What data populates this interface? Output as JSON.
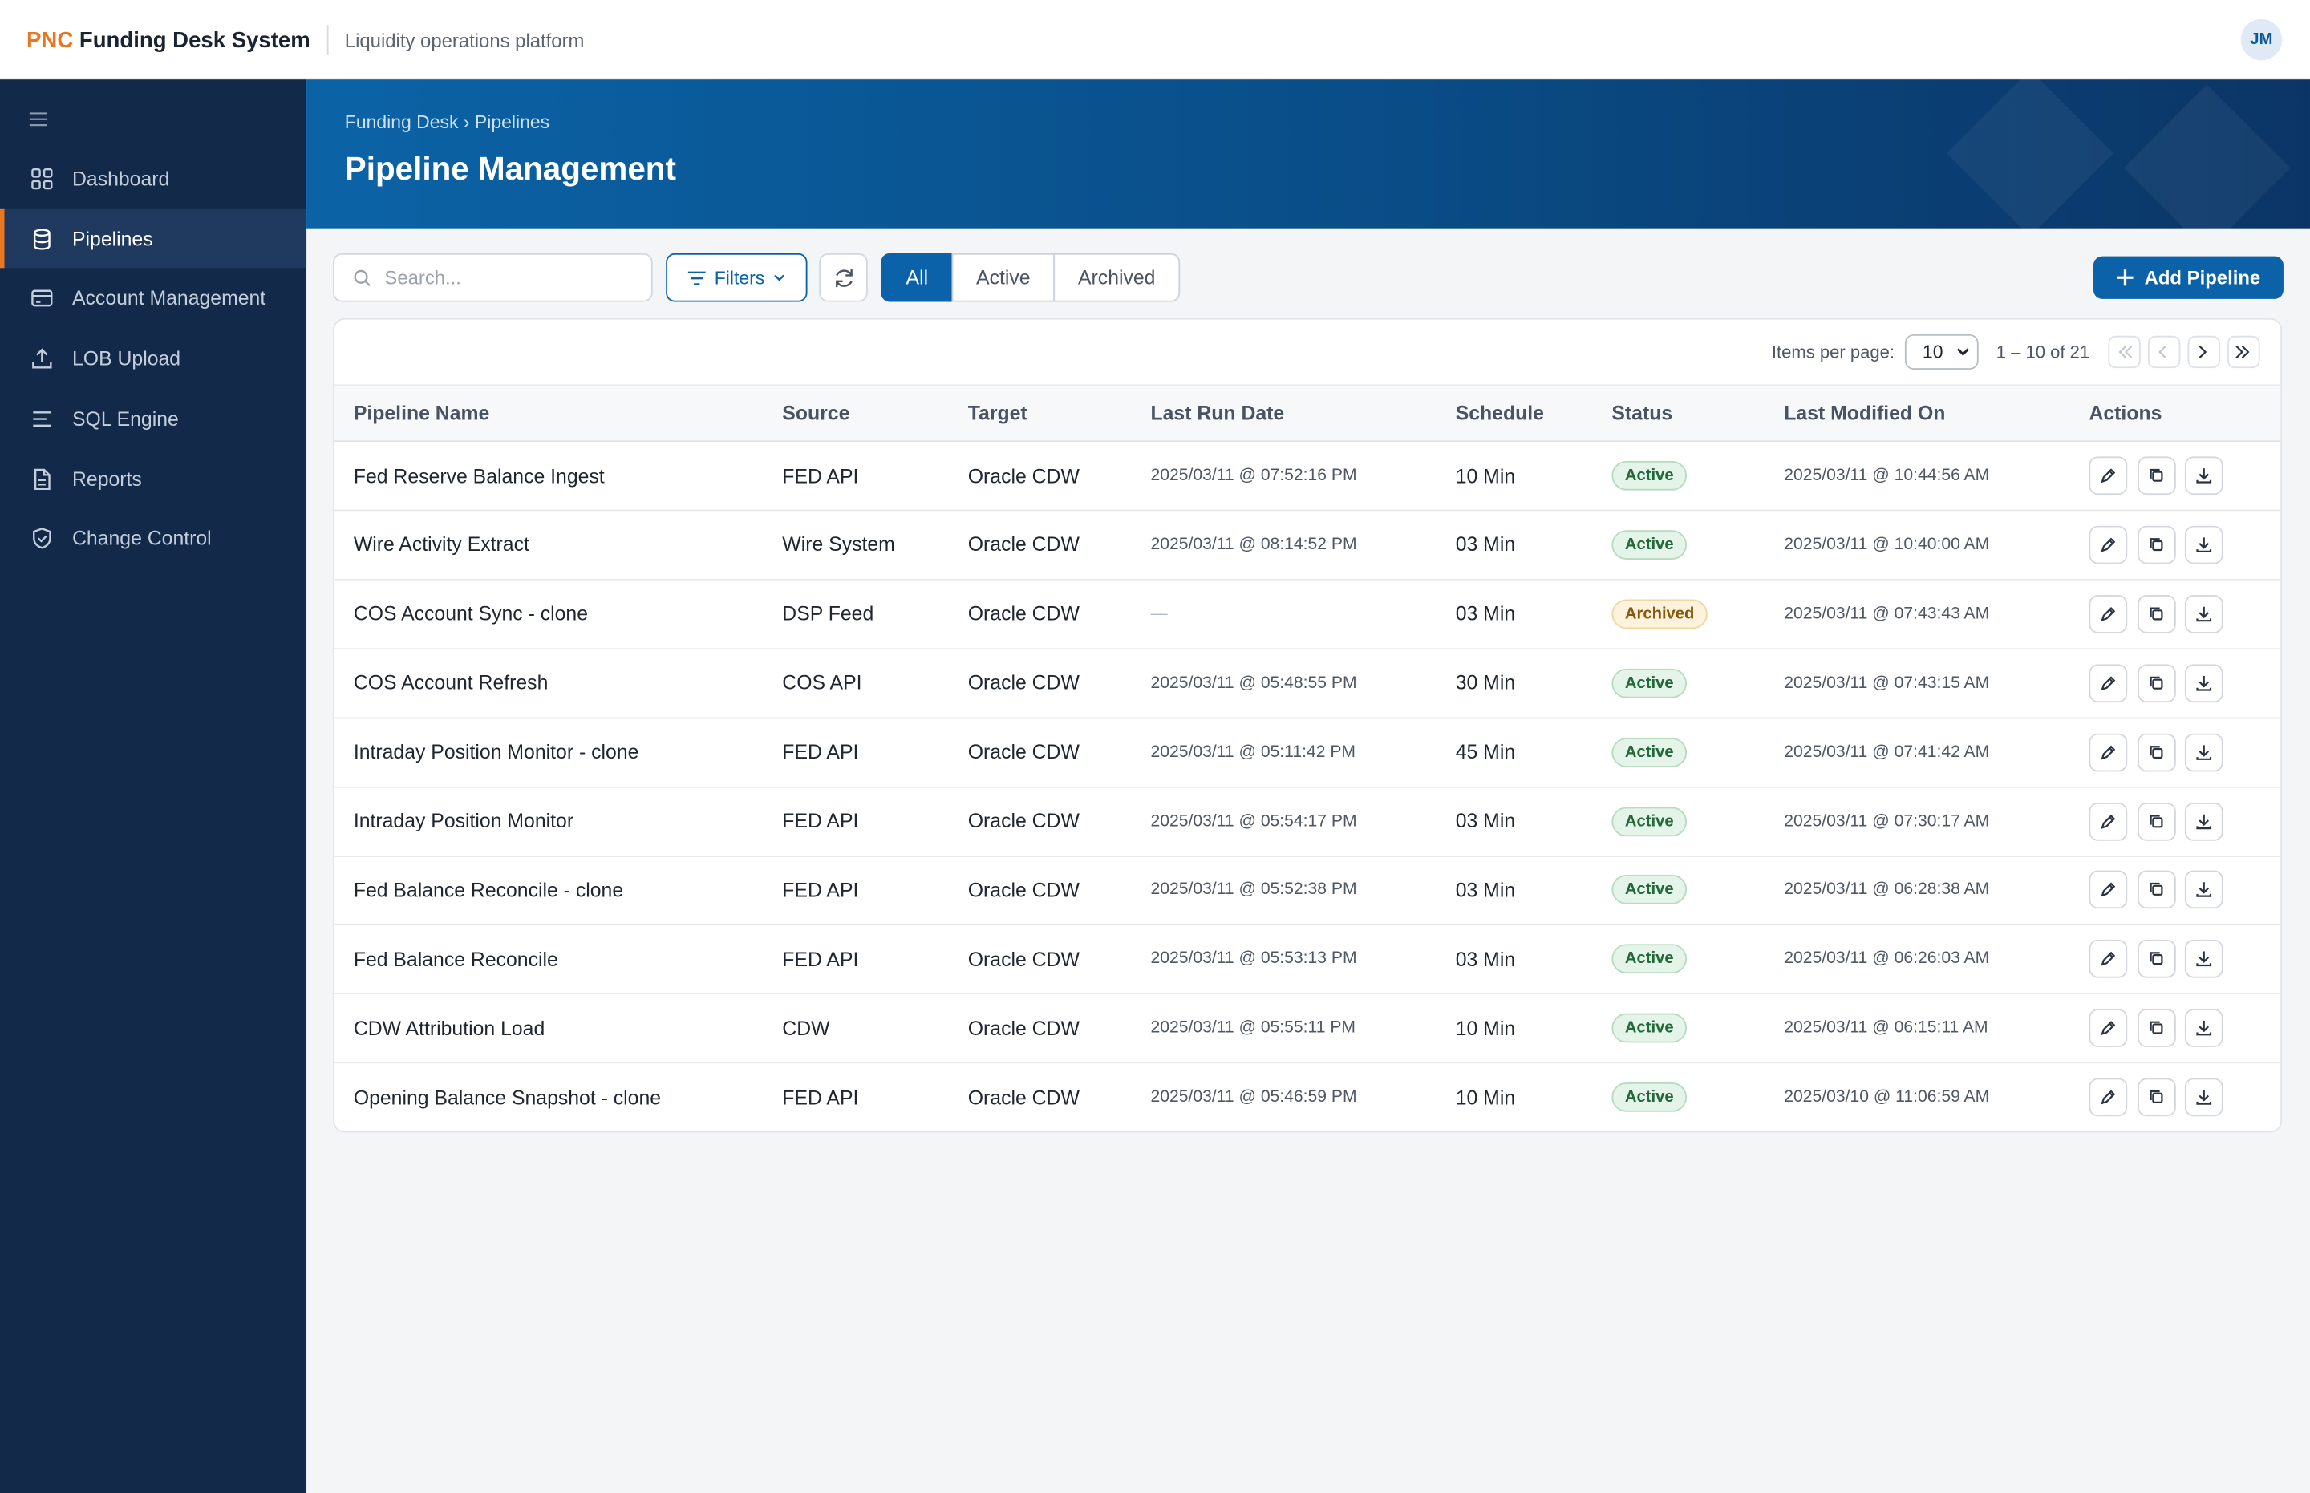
{
  "header": {
    "brand_accent": "PNC",
    "brand": "Funding Desk System",
    "tagline": "Liquidity operations platform",
    "avatar": "JM"
  },
  "sidebar": {
    "items": [
      "Dashboard",
      "Pipelines",
      "Account Management",
      "LOB Upload",
      "SQL Engine",
      "Reports",
      "Change Control"
    ],
    "active": 1
  },
  "page": {
    "breadcrumb": [
      "Funding Desk",
      "Pipelines"
    ],
    "breadcrumb_separator": "›",
    "title": "Pipeline Management"
  },
  "toolbar": {
    "search_placeholder": "Search...",
    "filters": "Filters",
    "tabs": [
      "All",
      "Active",
      "Archived"
    ],
    "active_tab": 0,
    "add_button": "Add Pipeline"
  },
  "pagination": {
    "label": "Items per page:",
    "page_size": "10",
    "range": "1 – 10 of 21"
  },
  "table": {
    "columns": [
      "Pipeline Name",
      "Source",
      "Target",
      "Last Run Date",
      "Schedule",
      "Status",
      "Last Modified On",
      "Actions"
    ],
    "rows": [
      [
        "Fed Reserve Balance Ingest",
        "FED API",
        "Oracle CDW",
        "2025/03/11 @ 07:52:16 PM",
        "10 Min",
        "Active",
        "2025/03/11 @ 10:44:56 AM"
      ],
      [
        "Wire Activity Extract",
        "Wire System",
        "Oracle CDW",
        "2025/03/11 @ 08:14:52 PM",
        "03 Min",
        "Active",
        "2025/03/11 @ 10:40:00 AM"
      ],
      [
        "COS Account Sync - clone",
        "DSP Feed",
        "Oracle CDW",
        "—",
        "03 Min",
        "Archived",
        "2025/03/11 @ 07:43:43 AM"
      ],
      [
        "COS Account Refresh",
        "COS API",
        "Oracle CDW",
        "2025/03/11 @ 05:48:55 PM",
        "30 Min",
        "Active",
        "2025/03/11 @ 07:43:15 AM"
      ],
      [
        "Intraday Position Monitor - clone",
        "FED API",
        "Oracle CDW",
        "2025/03/11 @ 05:11:42 PM",
        "45 Min",
        "Active",
        "2025/03/11 @ 07:41:42 AM"
      ],
      [
        "Intraday Position Monitor",
        "FED API",
        "Oracle CDW",
        "2025/03/11 @ 05:54:17 PM",
        "03 Min",
        "Active",
        "2025/03/11 @ 07:30:17 AM"
      ],
      [
        "Fed Balance Reconcile - clone",
        "FED API",
        "Oracle CDW",
        "2025/03/11 @ 05:52:38 PM",
        "03 Min",
        "Active",
        "2025/03/11 @ 06:28:38 AM"
      ],
      [
        "Fed Balance Reconcile",
        "FED API",
        "Oracle CDW",
        "2025/03/11 @ 05:53:13 PM",
        "03 Min",
        "Active",
        "2025/03/11 @ 06:26:03 AM"
      ],
      [
        "CDW Attribution Load",
        "CDW",
        "Oracle CDW",
        "2025/03/11 @ 05:55:11 PM",
        "10 Min",
        "Active",
        "2025/03/11 @ 06:15:11 AM"
      ],
      [
        "Opening Balance Snapshot - clone",
        "FED API",
        "Oracle CDW",
        "2025/03/11 @ 05:46:59 PM",
        "10 Min",
        "Active",
        "2025/03/10 @ 11:06:59 AM"
      ]
    ]
  }
}
